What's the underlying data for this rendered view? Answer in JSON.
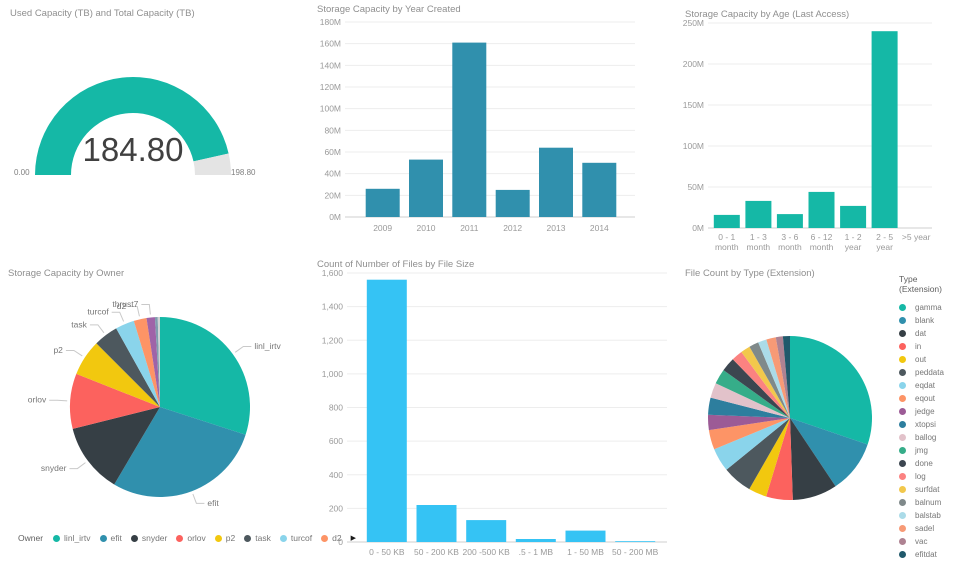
{
  "chart_data": [
    {
      "type": "gauge",
      "title": "Used Capacity (TB) and Total Capacity (TB)",
      "value": 184.8,
      "min": 0,
      "max": 198.8,
      "value_label": "184.80",
      "min_label": "0.00",
      "max_label": "198.80",
      "fill_color": "#15b8a6",
      "track_color": "#e4e4e4"
    },
    {
      "type": "bar",
      "title": "Storage Capacity by Year Created",
      "categories": [
        "2009",
        "2010",
        "2011",
        "2012",
        "2013",
        "2014"
      ],
      "values": [
        26,
        53,
        161,
        25,
        64,
        50
      ],
      "ylim": [
        0,
        180
      ],
      "ytick_step": 20,
      "tick_suffix": "M",
      "bar_color": "#3090ad",
      "grid": true,
      "legend_position": "none"
    },
    {
      "type": "bar",
      "title": "Storage Capacity by Age (Last Access)",
      "categories": [
        "0 - 1\nmonth",
        "1 - 3\nmonth",
        "3 - 6\nmonth",
        "6 - 12\nmonth",
        "1 - 2\nyear",
        "2 - 5\nyear",
        ">5 year"
      ],
      "values": [
        16,
        33,
        17,
        44,
        27,
        240,
        0
      ],
      "ylim": [
        0,
        250
      ],
      "ytick_step": 50,
      "tick_suffix": "M",
      "bar_color": "#15b8a6",
      "grid": true,
      "legend_position": "none"
    },
    {
      "type": "pie",
      "title": "Storage Capacity by Owner",
      "slices": [
        {
          "label": "linl_irtv",
          "value": 30.0,
          "color": "#15b8a6",
          "callout": true
        },
        {
          "label": "efit",
          "value": 28.5,
          "color": "#3090ad",
          "callout": true
        },
        {
          "label": "snyder",
          "value": 12.6,
          "color": "#363f45",
          "callout": true
        },
        {
          "label": "orlov",
          "value": 9.9,
          "color": "#fc625e",
          "callout": true
        },
        {
          "label": "p2",
          "value": 6.5,
          "color": "#f2c80f",
          "callout": true
        },
        {
          "label": "task",
          "value": 4.4,
          "color": "#4d585e",
          "callout": true
        },
        {
          "label": "turcof",
          "value": 3.4,
          "color": "#8ad4eb",
          "callout": true
        },
        {
          "label": "d2",
          "value": 2.3,
          "color": "#fd9466",
          "callout": true
        },
        {
          "label": "thrust7",
          "value": 1.5,
          "color": "#9f63a8",
          "callout": true
        },
        {
          "label": "",
          "value": 0.5,
          "color": "#7f9dae",
          "callout": false
        },
        {
          "label": "",
          "value": 0.4,
          "color": "#cdd2d4",
          "callout": false
        }
      ],
      "legend": {
        "title": "Owner",
        "items": [
          "linl_irtv",
          "efit",
          "snyder",
          "orlov",
          "p2",
          "task",
          "turcof",
          "d2"
        ],
        "overflow_arrow": "▶"
      }
    },
    {
      "type": "bar",
      "title": "Count of Number of Files by File Size",
      "categories": [
        "0 - 50 KB",
        "50 - 200 KB",
        "200 -500 KB",
        ".5 - 1 MB",
        "1 - 50 MB",
        "50 - 200 MB"
      ],
      "values": [
        1560,
        220,
        130,
        18,
        68,
        5
      ],
      "ylim": [
        0,
        1600
      ],
      "ytick_step": 200,
      "tick_format": "comma",
      "bar_color": "#35c3f4",
      "grid": true,
      "legend_position": "none"
    },
    {
      "type": "pie",
      "title": "File Count by Type (Extension)",
      "slices": [
        {
          "label": "gamma",
          "value": 30.5,
          "color": "#15b8a6"
        },
        {
          "label": "blank",
          "value": 10.5,
          "color": "#3090ad"
        },
        {
          "label": "dat",
          "value": 8.9,
          "color": "#363f45"
        },
        {
          "label": "in",
          "value": 5.3,
          "color": "#fc625e"
        },
        {
          "label": "out",
          "value": 3.6,
          "color": "#f2c80f"
        },
        {
          "label": "peddata",
          "value": 5.9,
          "color": "#4d585e"
        },
        {
          "label": "eqdat",
          "value": 4.7,
          "color": "#8ad4eb"
        },
        {
          "label": "eqout",
          "value": 3.9,
          "color": "#fd9466"
        },
        {
          "label": "jedge",
          "value": 3.0,
          "color": "#9c5b96"
        },
        {
          "label": "xtopsi",
          "value": 3.4,
          "color": "#2d7e9e"
        },
        {
          "label": "ballog",
          "value": 3.0,
          "color": "#e2c2ca"
        },
        {
          "label": "jmg",
          "value": 3.0,
          "color": "#36ad89"
        },
        {
          "label": "done",
          "value": 2.8,
          "color": "#3c4650"
        },
        {
          "label": "log",
          "value": 2.2,
          "color": "#fb8281"
        },
        {
          "label": "surfdat",
          "value": 1.9,
          "color": "#f2c84c"
        },
        {
          "label": "balnum",
          "value": 1.9,
          "color": "#7f898a"
        },
        {
          "label": "balstab",
          "value": 1.7,
          "color": "#abdbe8"
        },
        {
          "label": "sadel",
          "value": 1.9,
          "color": "#f79a76"
        },
        {
          "label": "vac",
          "value": 1.4,
          "color": "#ae8292"
        },
        {
          "label": "efitdat",
          "value": 1.4,
          "color": "#20596b"
        }
      ],
      "legend": {
        "title": "Type (Extension)"
      }
    }
  ]
}
